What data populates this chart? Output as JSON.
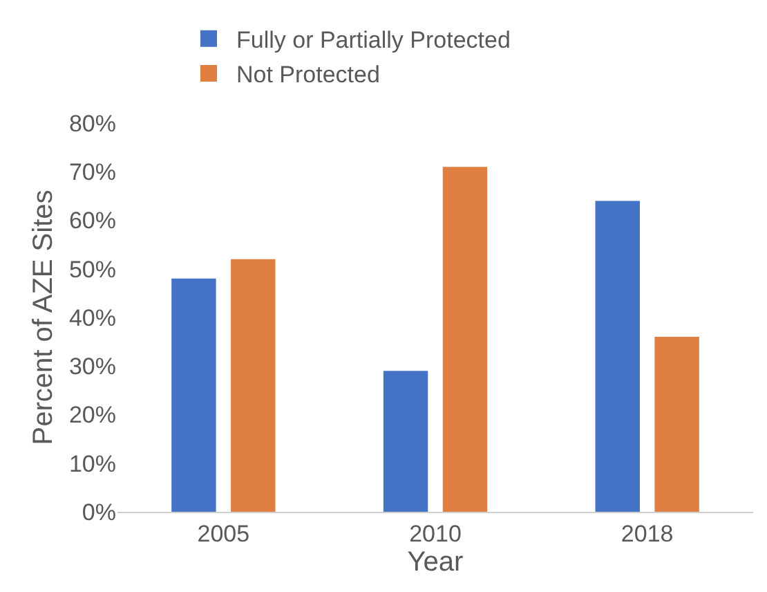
{
  "chart_data": {
    "type": "bar",
    "xlabel": "Year",
    "ylabel": "Percent of AZE Sites",
    "categories": [
      "2005",
      "2010",
      "2018"
    ],
    "series": [
      {
        "name": "Fully or Partially Protected",
        "color": "#4472c4",
        "values": [
          48,
          29,
          64
        ]
      },
      {
        "name": "Not Protected",
        "color": "#e07f42",
        "values": [
          52,
          71,
          36
        ]
      }
    ],
    "ylim": [
      0,
      80
    ],
    "yticks": [
      {
        "value": 0,
        "label": "0%"
      },
      {
        "value": 10,
        "label": "10%"
      },
      {
        "value": 20,
        "label": "20%"
      },
      {
        "value": 30,
        "label": "30%"
      },
      {
        "value": 40,
        "label": "40%"
      },
      {
        "value": 50,
        "label": "50%"
      },
      {
        "value": 60,
        "label": "60%"
      },
      {
        "value": 70,
        "label": "70%"
      },
      {
        "value": 80,
        "label": "80%"
      }
    ],
    "legend": "top left"
  }
}
